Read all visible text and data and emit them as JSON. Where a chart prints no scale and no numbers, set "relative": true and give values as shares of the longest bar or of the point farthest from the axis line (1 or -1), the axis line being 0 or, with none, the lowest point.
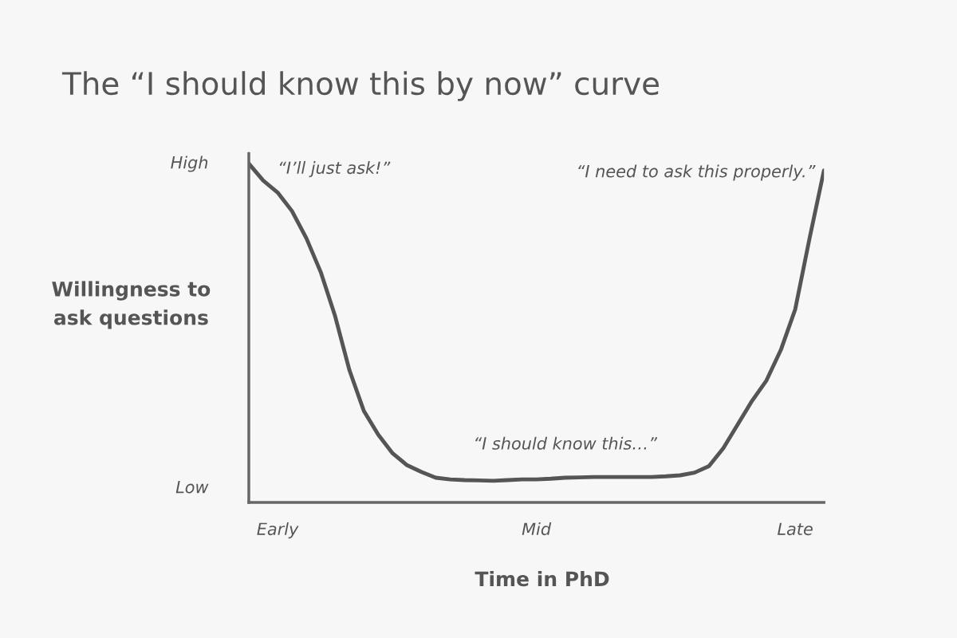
{
  "chart_data": {
    "type": "line",
    "title": "The “I should know this by now” curve",
    "xlabel": "Time in PhD",
    "ylabel": "Willingness to\nask questions",
    "relative": true,
    "grid": false,
    "legend": false,
    "marker": "none",
    "line_style": "solid",
    "categories": [
      null,
      null,
      "Early",
      null,
      null,
      null,
      null,
      null,
      null,
      null,
      null,
      null,
      null,
      null,
      null,
      null,
      null,
      null,
      null,
      null,
      "Mid",
      null,
      null,
      null,
      null,
      null,
      null,
      null,
      null,
      null,
      null,
      null,
      null,
      null,
      null,
      null,
      null,
      null,
      "Late",
      null,
      null
    ],
    "series": [
      {
        "color": "#555555",
        "values": [
          1.0,
          0.95,
          0.915,
          0.86,
          0.78,
          0.68,
          0.55,
          0.39,
          0.27,
          0.2,
          0.145,
          0.11,
          0.09,
          0.073,
          0.068,
          0.066,
          0.065,
          0.064,
          0.066,
          0.068,
          0.068,
          0.07,
          0.073,
          0.074,
          0.075,
          0.075,
          0.075,
          0.075,
          0.075,
          0.077,
          0.08,
          0.088,
          0.107,
          0.16,
          0.23,
          0.3,
          0.36,
          0.45,
          0.57,
          0.78,
          0.98
        ]
      }
    ],
    "annotations": [
      "High",
      "Low",
      "“I’ll just ask!”",
      "“I should know this…”",
      "“I need to ask this properly.”"
    ]
  }
}
